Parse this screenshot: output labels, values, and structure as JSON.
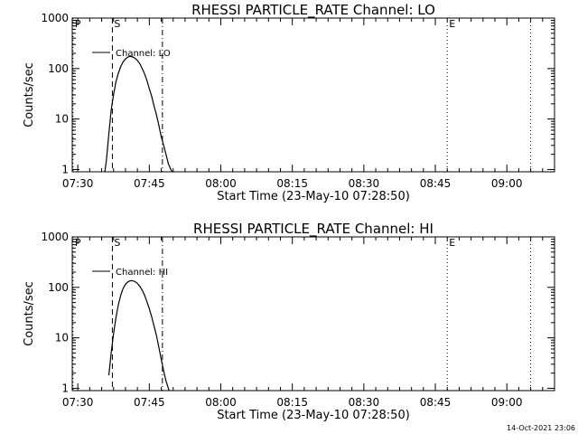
{
  "chart_data": [
    {
      "type": "line",
      "title": "RHESSI PARTICLE_RATE Channel: LO",
      "xlabel": "Start Time (23-May-10 07:28:50)",
      "ylabel": "Counts/sec",
      "yscale": "log",
      "xlim": [
        "07:28:50",
        "09:10:00"
      ],
      "ylim": [
        0.9,
        1000
      ],
      "x_ticks": [
        "07:30",
        "07:45",
        "08:00",
        "08:15",
        "08:30",
        "08:45",
        "09:00"
      ],
      "y_ticks": [
        "1",
        "10",
        "100",
        "1000"
      ],
      "legend": {
        "position": "top-left",
        "entries": [
          "Channel: LO"
        ]
      },
      "markers": [
        {
          "label": "P",
          "time": "07:29:00",
          "style": "dotted"
        },
        {
          "label": "S",
          "time": "07:37:15",
          "style": "dashed"
        },
        {
          "label": "",
          "time": "07:47:45",
          "style": "dash-dot"
        },
        {
          "label": "E",
          "time": "08:47:30",
          "style": "dotted"
        },
        {
          "label": "",
          "time": "09:05:00",
          "style": "dotted"
        }
      ],
      "series": [
        {
          "name": "Channel: LO",
          "x": [
            "07:35:40",
            "07:36:00",
            "07:36:30",
            "07:37:00",
            "07:37:30",
            "07:38:00",
            "07:38:30",
            "07:39:00",
            "07:39:30",
            "07:40:00",
            "07:40:30",
            "07:41:00",
            "07:41:30",
            "07:42:00",
            "07:42:30",
            "07:43:00",
            "07:43:30",
            "07:44:00",
            "07:44:30",
            "07:45:00",
            "07:45:30",
            "07:46:00",
            "07:46:30",
            "07:47:00",
            "07:47:30",
            "07:48:00",
            "07:48:30",
            "07:49:00",
            "07:49:30",
            "07:49:50"
          ],
          "y": [
            0.9,
            1.5,
            5,
            15,
            30,
            55,
            80,
            110,
            135,
            155,
            170,
            175,
            170,
            160,
            145,
            125,
            100,
            78,
            58,
            40,
            28,
            18,
            12,
            7.5,
            4.5,
            3,
            2,
            1.3,
            1.0,
            0.9
          ]
        }
      ]
    },
    {
      "type": "line",
      "title": "RHESSI PARTICLE_RATE Channel: HI",
      "xlabel": "Start Time (23-May-10 07:28:50)",
      "ylabel": "Counts/sec",
      "yscale": "log",
      "xlim": [
        "07:28:50",
        "09:10:00"
      ],
      "ylim": [
        0.9,
        1000
      ],
      "x_ticks": [
        "07:30",
        "07:45",
        "08:00",
        "08:15",
        "08:30",
        "08:45",
        "09:00"
      ],
      "y_ticks": [
        "1",
        "10",
        "100",
        "1000"
      ],
      "legend": {
        "position": "top-left",
        "entries": [
          "Channel: HI"
        ]
      },
      "markers": [
        {
          "label": "P",
          "time": "07:29:00",
          "style": "dotted"
        },
        {
          "label": "S",
          "time": "07:37:15",
          "style": "dashed"
        },
        {
          "label": "",
          "time": "07:47:45",
          "style": "dash-dot"
        },
        {
          "label": "E",
          "time": "08:47:30",
          "style": "dotted"
        },
        {
          "label": "",
          "time": "09:05:00",
          "style": "dotted"
        }
      ],
      "series": [
        {
          "name": "Channel: HI",
          "x": [
            "07:36:30",
            "07:37:00",
            "07:37:30",
            "07:38:00",
            "07:38:30",
            "07:39:00",
            "07:39:30",
            "07:40:00",
            "07:40:30",
            "07:41:00",
            "07:41:30",
            "07:42:00",
            "07:42:30",
            "07:43:00",
            "07:43:30",
            "07:44:00",
            "07:44:30",
            "07:45:00",
            "07:45:30",
            "07:46:00",
            "07:46:30",
            "07:47:00",
            "07:47:30",
            "07:48:00",
            "07:48:30",
            "07:49:00",
            "07:49:10"
          ],
          "y": [
            1.8,
            5,
            12,
            25,
            45,
            70,
            95,
            115,
            128,
            135,
            135,
            130,
            120,
            105,
            88,
            70,
            52,
            38,
            26,
            17,
            11,
            6.5,
            3.8,
            2.2,
            1.4,
            1.0,
            0.9
          ]
        }
      ]
    }
  ],
  "footer": {
    "timestamp": "14-Oct-2021 23:06"
  }
}
